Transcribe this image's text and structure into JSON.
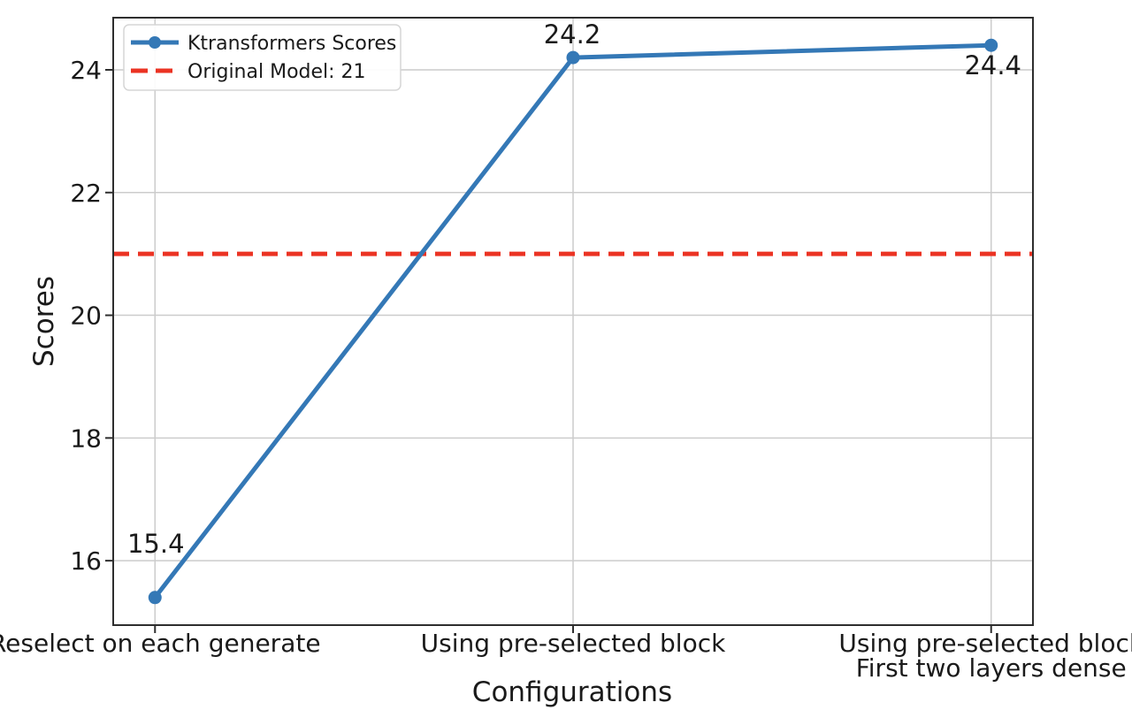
{
  "chart_data": {
    "type": "line",
    "title": "",
    "xlabel": "Configurations",
    "ylabel": "Scores",
    "categories": [
      "Reselect on each generate",
      "Using pre-selected block",
      "Using pre-selected block\nFirst two layers dense"
    ],
    "series": [
      {
        "name": "Ktransformers Scores",
        "values": [
          15.4,
          24.2,
          24.4
        ],
        "color": "#3478b6",
        "marker": "circle",
        "line_width": 5
      }
    ],
    "reference_line": {
      "label": "Original Model: 21",
      "value": 21,
      "color": "#eb3323",
      "style": "dashed",
      "line_width": 5
    },
    "annotations": [
      "15.4",
      "24.2",
      "24.4"
    ],
    "yticks": [
      "16",
      "18",
      "20",
      "22",
      "24"
    ],
    "ytick_values": [
      16,
      18,
      20,
      22,
      24
    ],
    "ylim": [
      14.95,
      24.85
    ],
    "grid": true,
    "legend_position": "upper left",
    "legend_entries": [
      "Ktransformers Scores",
      "Original Model: 21"
    ],
    "colors": {
      "grid": "#cccccc",
      "spine": "#2e2e2e",
      "background": "#ffffff",
      "legend_border": "#d5d5d5"
    }
  }
}
